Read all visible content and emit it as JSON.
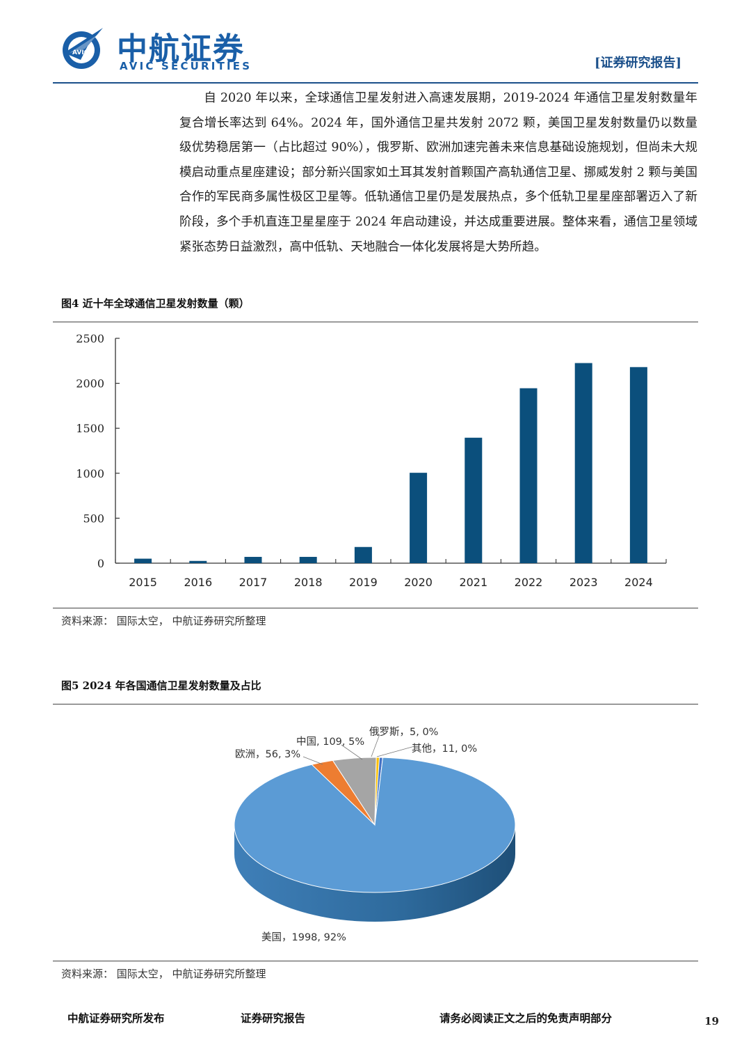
{
  "header": {
    "brand_cn": "中航证券",
    "brand_en": "AVIC SECURITIES",
    "logo_text": "AVIC",
    "report_tag": "[证券研究报告]"
  },
  "body_paragraph": "自 2020 年以来，全球通信卫星发射进入高速发展期，2019-2024 年通信卫星发射数量年复合增长率达到 64%。2024 年，国外通信卫星共发射 2072 颗，美国卫星发射数量仍以数量级优势稳居第一（占比超过 90%），俄罗斯、欧洲加速完善未来信息基础设施规划，但尚未大规模启动重点星座建设；部分新兴国家如土耳其发射首颗国产高轨通信卫星、挪威发射 2 颗与美国合作的军民商多属性极区卫星等。低轨通信卫星仍是发展热点，多个低轨卫星星座部署迈入了新阶段，多个手机直连卫星星座于 2024 年启动建设，并达成重要进展。整体来看，通信卫星领域紧张态势日益激烈，高中低轨、天地融合一体化发展将是大势所趋。",
  "figure4": {
    "title": "图4  近十年全球通信卫星发射数量（颗）",
    "source": "资料来源：  国际太空，  中航证券研究所整理"
  },
  "figure5": {
    "title": "图5  2024 年各国通信卫星发射数量及占比",
    "source": "资料来源：  国际太空，  中航证券研究所整理"
  },
  "chart_data": [
    {
      "type": "bar",
      "categories": [
        "2015",
        "2016",
        "2017",
        "2018",
        "2019",
        "2020",
        "2021",
        "2022",
        "2023",
        "2024"
      ],
      "values": [
        50,
        25,
        70,
        70,
        180,
        1005,
        1395,
        1945,
        2225,
        2180
      ],
      "ylim": [
        0,
        2500
      ],
      "yticks": [
        0,
        500,
        1000,
        1500,
        2000,
        2500
      ],
      "bar_color": "#0b4f7c",
      "grid": false
    },
    {
      "type": "pie",
      "slices": [
        {
          "label": "美国，1998, 92%",
          "value": 1998,
          "color": "#5b9bd5",
          "side": "#2e6a9c"
        },
        {
          "label": "欧洲，56, 3%",
          "value": 56,
          "color": "#ed7d31",
          "side": "#b35a1f"
        },
        {
          "label": "中国, 109, 5%",
          "value": 109,
          "color": "#a5a5a5",
          "side": "#7a7a7a"
        },
        {
          "label": "俄罗斯，5, 0%",
          "value": 5,
          "color": "#ffc000",
          "side": "#c99700"
        },
        {
          "label": "其他，11, 0%",
          "value": 11,
          "color": "#4472c4",
          "side": "#2f5597"
        }
      ]
    }
  ],
  "footer": {
    "left": "中航证券研究所发布",
    "middle": "证券研究报告",
    "right": "请务必阅读正文之后的免责声明部分",
    "page": "19"
  }
}
